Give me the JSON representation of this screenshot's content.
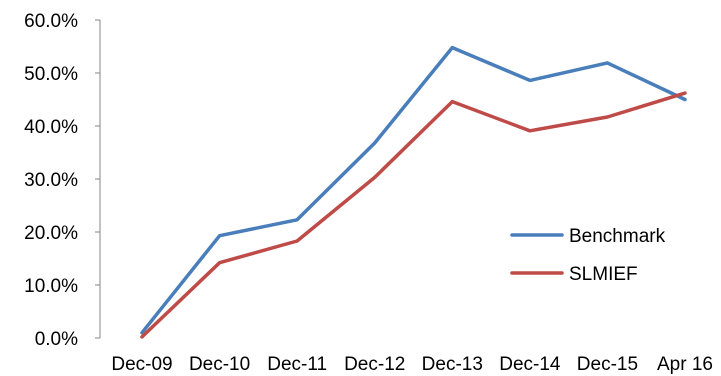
{
  "chart_data": {
    "type": "line",
    "title": "",
    "xlabel": "",
    "ylabel": "",
    "categories": [
      "Dec-09",
      "Dec-10",
      "Dec-11",
      "Dec-12",
      "Dec-13",
      "Dec-14",
      "Dec-15",
      "Apr 16"
    ],
    "y_ticks": [
      "0.0%",
      "10.0%",
      "20.0%",
      "30.0%",
      "40.0%",
      "50.0%",
      "60.0%"
    ],
    "ylim": [
      0,
      60
    ],
    "grid": false,
    "legend_position": "right",
    "series": [
      {
        "name": "Benchmark",
        "color": "#4a7ebb",
        "values": [
          1.0,
          19.3,
          22.3,
          36.8,
          54.8,
          48.6,
          51.9,
          45.0
        ]
      },
      {
        "name": "SLMIEF",
        "color": "#be4b48",
        "values": [
          0.2,
          14.2,
          18.3,
          30.3,
          44.6,
          39.1,
          41.7,
          46.2
        ]
      }
    ]
  }
}
